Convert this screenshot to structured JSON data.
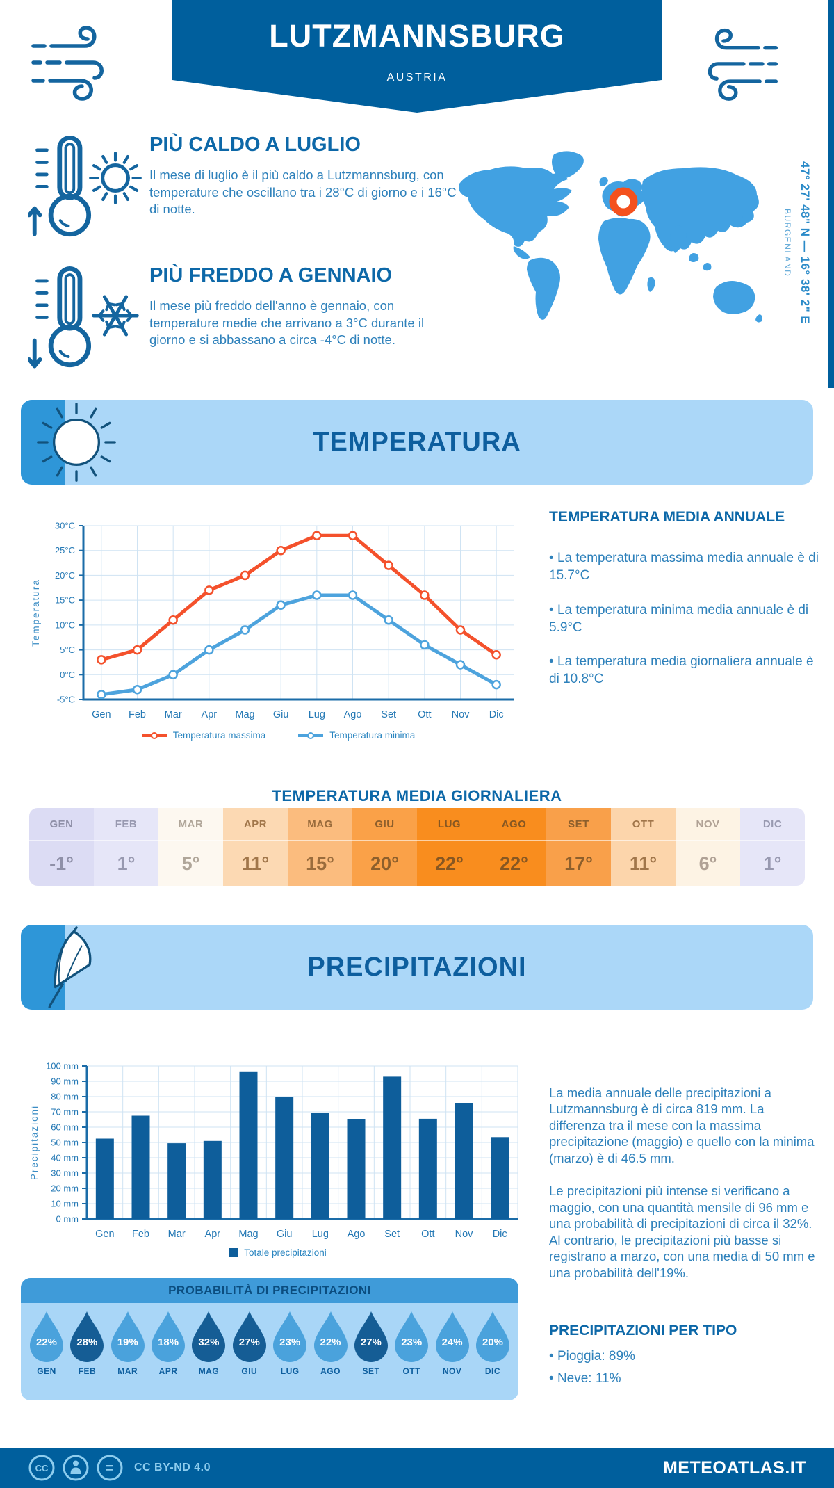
{
  "colors": {
    "brand_dark_blue": "#005f9d",
    "heading_blue": "#0d68a8",
    "body_blue": "#2e81bb",
    "panel_light_blue": "#abd7f8",
    "panel_strip_blue": "#2e96d8",
    "map_blue": "#41a1e2",
    "marker_orange": "#f4511e",
    "prob_header_blue": "#3f9bd9",
    "droplet_light": "#4aa2dc",
    "droplet_dark": "#155d95"
  },
  "header": {
    "title": "LUTZMANNSBURG",
    "subtitle": "AUSTRIA"
  },
  "location": {
    "coordinates": "47° 27' 48\" N — 16° 38' 2\" E",
    "region": "BURGENLAND"
  },
  "highlights": {
    "warm": {
      "title": "PIÙ CALDO A LUGLIO",
      "text": "Il mese di luglio è il più caldo a Lutzmannsburg, con temperature che oscillano tra i 28°C di giorno e i 16°C di notte."
    },
    "cold": {
      "title": "PIÙ FREDDO A GENNAIO",
      "text": "Il mese più freddo dell'anno è gennaio, con temperature medie che arrivano a 3°C durante il giorno e si abbassano a circa -4°C di notte."
    }
  },
  "temperature_section": {
    "banner_title": "TEMPERATURA",
    "annual_title": "TEMPERATURA MEDIA ANNUALE",
    "annual_bullets": [
      "La temperatura massima media annuale è di 15.7°C",
      "La temperatura minima media annuale è di 5.9°C",
      "La temperatura media giornaliera annuale è di 10.8°C"
    ],
    "daily_title": "TEMPERATURA MEDIA GIORNALIERA"
  },
  "precipitation_section": {
    "banner_title": "PRECIPITAZIONI",
    "paragraphs": [
      "La media annuale delle precipitazioni a Lutzmannsburg è di circa 819 mm. La differenza tra il mese con la massima precipitazione (maggio) e quello con la minima (marzo) è di 46.5 mm.",
      "Le precipitazioni più intense si verificano a maggio, con una quantità mensile di 96 mm e una probabilità di precipitazioni di circa il 32%. Al contrario, le precipitazioni più basse si registrano a marzo, con una media di 50 mm e una probabilità dell'19%."
    ],
    "probability_title": "PROBABILITÀ DI PRECIPITAZIONI",
    "per_type_title": "PRECIPITAZIONI PER TIPO",
    "per_type_items": [
      "Pioggia: 89%",
      "Neve: 11%"
    ]
  },
  "footer": {
    "license": "CC BY-ND 4.0",
    "site": "METEOATLAS.IT",
    "cc_label": "CC",
    "nd_label": "="
  },
  "chart_data": [
    {
      "id": "temperature_monthly",
      "type": "line",
      "title": "Temperatura",
      "categories": [
        "Gen",
        "Feb",
        "Mar",
        "Apr",
        "Mag",
        "Giu",
        "Lug",
        "Ago",
        "Set",
        "Ott",
        "Nov",
        "Dic"
      ],
      "series": [
        {
          "name": "Temperatura massima",
          "color": "#f4512c",
          "values": [
            3,
            5,
            11,
            17,
            20,
            25,
            28,
            28,
            22,
            16,
            9,
            4
          ]
        },
        {
          "name": "Temperatura minima",
          "color": "#4da3dd",
          "values": [
            -4,
            -3,
            0,
            5,
            9,
            14,
            16,
            16,
            11,
            6,
            2,
            -2
          ]
        }
      ],
      "ylabel": "Temperatura",
      "ylim": [
        -5,
        30
      ],
      "ytick_step": 5,
      "ytick_suffix": "°C",
      "grid": true,
      "legend_position": "bottom"
    },
    {
      "id": "precipitation_monthly",
      "type": "bar",
      "title": "Precipitazioni",
      "categories": [
        "Gen",
        "Feb",
        "Mar",
        "Apr",
        "Mag",
        "Giu",
        "Lug",
        "Ago",
        "Set",
        "Ott",
        "Nov",
        "Dic"
      ],
      "values": [
        52.5,
        67.5,
        49.5,
        51,
        96,
        80,
        69.5,
        65,
        93,
        65.5,
        75.5,
        53.5
      ],
      "legend": "Totale precipitazioni",
      "ylabel": "Precipitazioni",
      "ylim": [
        0,
        100
      ],
      "ytick_step": 10,
      "ytick_suffix": " mm",
      "bar_color": "#0e5e9b",
      "grid": true
    },
    {
      "id": "daily_mean_temperature",
      "type": "table",
      "title": "TEMPERATURA MEDIA GIORNALIERA",
      "columns": [
        "GEN",
        "FEB",
        "MAR",
        "APR",
        "MAG",
        "GIU",
        "LUG",
        "AGO",
        "SET",
        "OTT",
        "NOV",
        "DIC"
      ],
      "values": [
        "-1°",
        "1°",
        "5°",
        "11°",
        "15°",
        "20°",
        "22°",
        "22°",
        "17°",
        "11°",
        "6°",
        "1°"
      ],
      "cell_colors": [
        "#dcdcf4",
        "#e6e6f8",
        "#fdf8f0",
        "#fcd9b3",
        "#fbbc7e",
        "#faa148",
        "#f98d1e",
        "#f98d1e",
        "#f9a04a",
        "#fcd5ab",
        "#fdf3e4",
        "#e6e6f8"
      ],
      "text_colors": [
        "#8f90a8",
        "#9899b0",
        "#b0a699",
        "#a1764a",
        "#9a6c3c",
        "#8d5f2c",
        "#875722",
        "#875722",
        "#8d5f2c",
        "#a1764a",
        "#b0a195",
        "#9899b0"
      ]
    },
    {
      "id": "precipitation_probability",
      "type": "pictogram",
      "title": "PROBABILITÀ DI PRECIPITAZIONI",
      "categories": [
        "GEN",
        "FEB",
        "MAR",
        "APR",
        "MAG",
        "GIU",
        "LUG",
        "AGO",
        "SET",
        "OTT",
        "NOV",
        "DIC"
      ],
      "values": [
        "22%",
        "28%",
        "19%",
        "18%",
        "32%",
        "27%",
        "23%",
        "22%",
        "27%",
        "23%",
        "24%",
        "20%"
      ],
      "emphasized": [
        false,
        true,
        false,
        false,
        true,
        true,
        false,
        false,
        true,
        false,
        false,
        false
      ],
      "colors": {
        "normal": "#4aa2dc",
        "emphasized": "#155d95"
      }
    }
  ]
}
